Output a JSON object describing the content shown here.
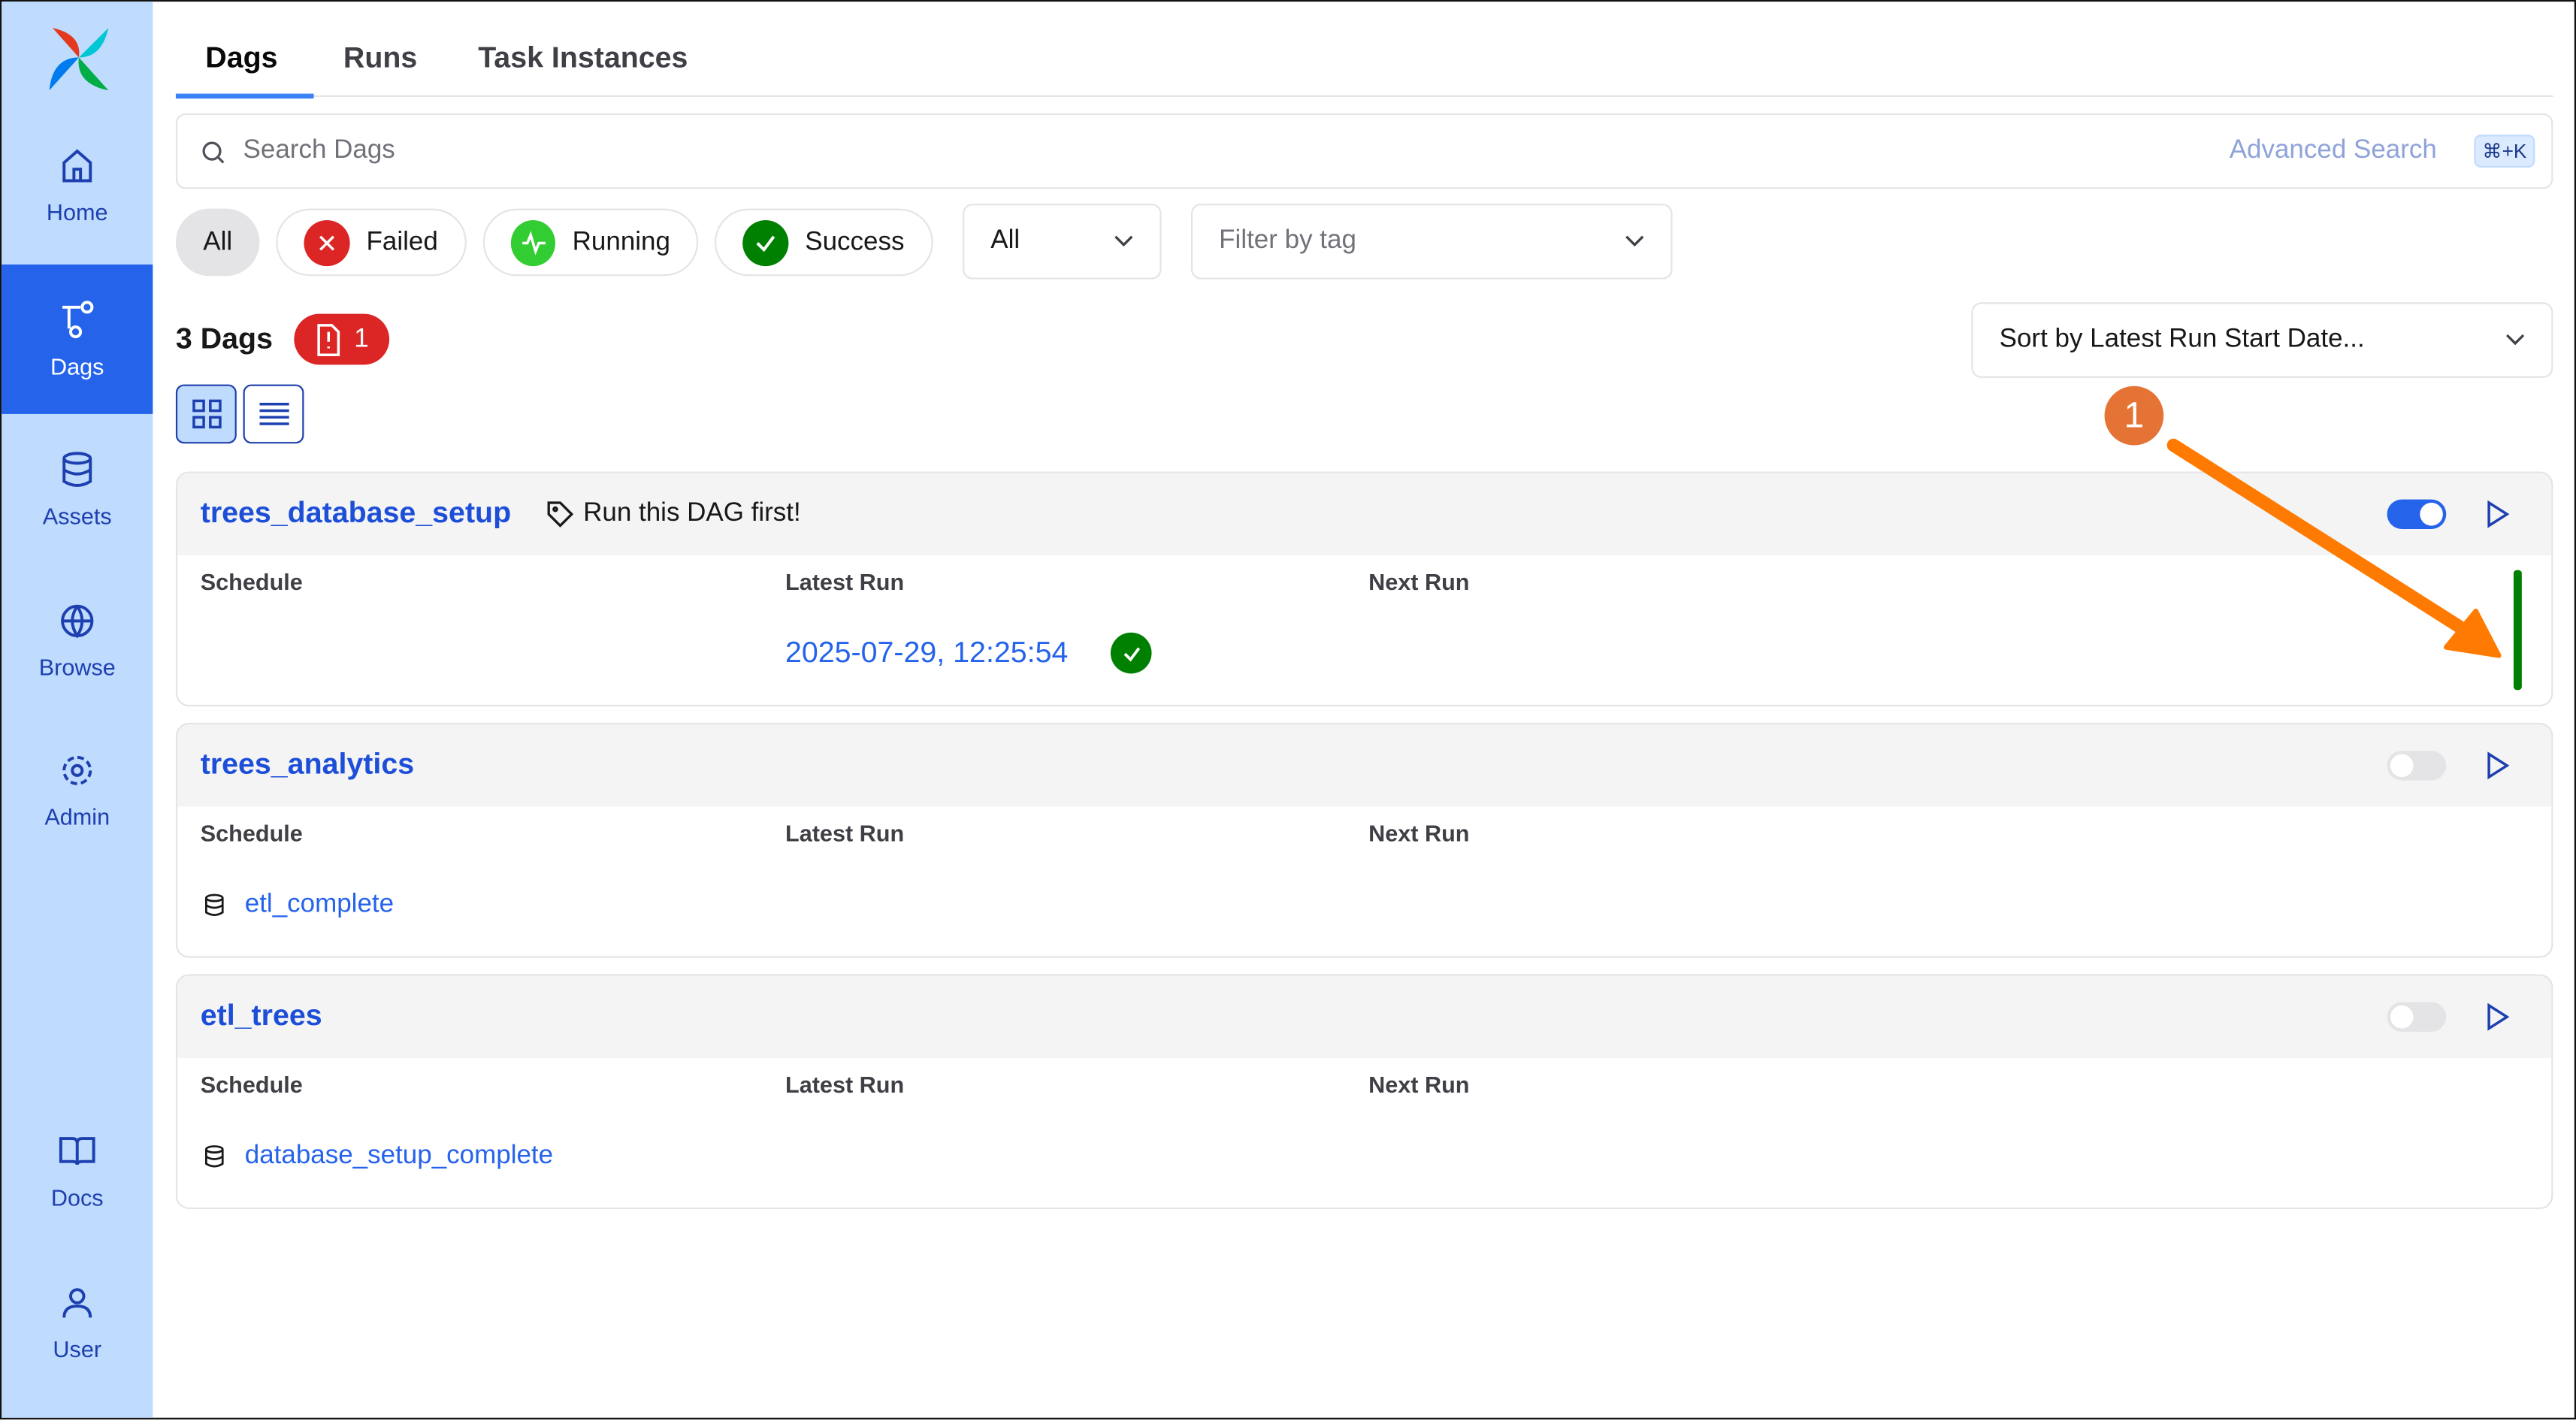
{
  "sidebar": {
    "items": [
      {
        "label": "Home",
        "icon": "home-icon"
      },
      {
        "label": "Dags",
        "icon": "dag-icon",
        "active": true
      },
      {
        "label": "Assets",
        "icon": "database-icon"
      },
      {
        "label": "Browse",
        "icon": "globe-icon"
      },
      {
        "label": "Admin",
        "icon": "gear-icon"
      },
      {
        "label": "Docs",
        "icon": "book-icon"
      },
      {
        "label": "User",
        "icon": "user-icon"
      }
    ]
  },
  "tabs": [
    {
      "label": "Dags",
      "active": true
    },
    {
      "label": "Runs"
    },
    {
      "label": "Task Instances"
    }
  ],
  "search": {
    "placeholder": "Search Dags",
    "advanced": "Advanced Search",
    "shortcut": "⌘+K"
  },
  "filters": {
    "all": "All",
    "failed": "Failed",
    "running": "Running",
    "success": "Success",
    "state_select": "All",
    "tag_placeholder": "Filter by tag"
  },
  "summary": {
    "count": "3 Dags",
    "import_errors": "1"
  },
  "sort": {
    "value": "Sort by Latest Run Start Date..."
  },
  "columns": {
    "schedule": "Schedule",
    "latest": "Latest Run",
    "next": "Next Run"
  },
  "dags": [
    {
      "name": "trees_database_setup",
      "tag": "Run this DAG first!",
      "enabled": true,
      "latest_run": "2025-07-29, 12:25:54",
      "latest_state": "success",
      "schedule": ""
    },
    {
      "name": "trees_analytics",
      "enabled": false,
      "schedule": "etl_complete",
      "latest_run": ""
    },
    {
      "name": "etl_trees",
      "enabled": false,
      "schedule": "database_setup_complete",
      "latest_run": ""
    }
  ],
  "annotation": {
    "number": "1"
  },
  "colors": {
    "primary": "#2563eb",
    "sidebar": "#bfdbfe",
    "failed": "#dc2626",
    "running": "#32cd32",
    "success": "#008000",
    "annotation": "#ff7a00"
  }
}
